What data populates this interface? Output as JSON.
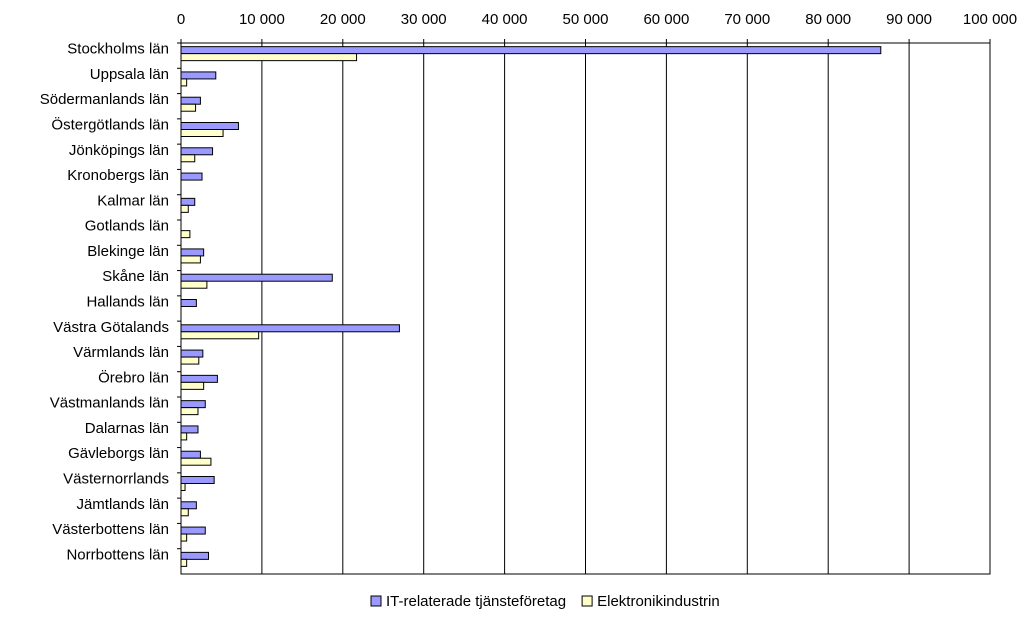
{
  "chart_data": {
    "type": "bar",
    "orientation": "horizontal",
    "categories": [
      "Stockholms län",
      "Uppsala län",
      "Södermanlands län",
      "Östergötlands län",
      "Jönköpings län",
      "Kronobergs län",
      "Kalmar län",
      "Gotlands län",
      "Blekinge län",
      "Skåne län",
      "Hallands län",
      "Västra Götalands",
      "Värmlands län",
      "Örebro län",
      "Västmanlands län",
      "Dalarnas län",
      "Gävleborgs län",
      "Västernorrlands",
      "Jämtlands län",
      "Västerbottens län",
      "Norrbottens län"
    ],
    "series": [
      {
        "name": "IT-relaterade tjänsteföretag",
        "color": "#9999ff",
        "values": [
          86500,
          4300,
          2400,
          7100,
          3900,
          2600,
          1700,
          0,
          2800,
          18700,
          1900,
          27000,
          2700,
          4500,
          3000,
          2100,
          2400,
          4100,
          1900,
          3000,
          3400
        ]
      },
      {
        "name": "Elektronikindustrin",
        "color": "#ffffcc",
        "values": [
          21700,
          700,
          1800,
          5200,
          1700,
          0,
          900,
          1100,
          2400,
          3200,
          0,
          9600,
          2200,
          2800,
          2100,
          700,
          3700,
          500,
          900,
          700,
          700
        ]
      }
    ],
    "xlim": [
      0,
      100000
    ],
    "xticks": [
      "0",
      "10 000",
      "20 000",
      "30 000",
      "40 000",
      "50 000",
      "60 000",
      "70 000",
      "80 000",
      "90 000",
      "100 000"
    ],
    "xtick_values": [
      0,
      10000,
      20000,
      30000,
      40000,
      50000,
      60000,
      70000,
      80000,
      90000,
      100000
    ],
    "xaxis_position": "top",
    "grid": "vertical",
    "legend_position": "bottom"
  }
}
